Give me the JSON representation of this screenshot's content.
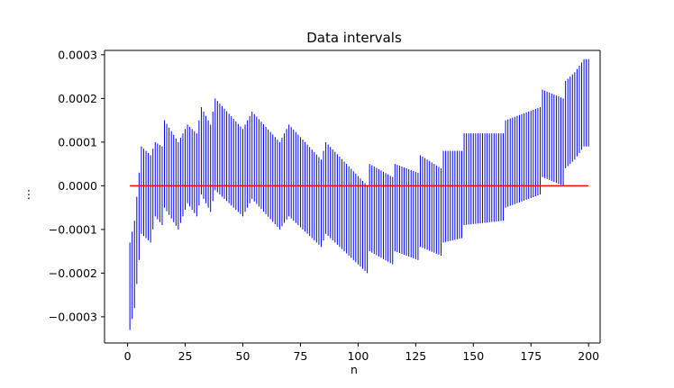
{
  "chart_data": {
    "type": "line",
    "title": "Data intervals",
    "xlabel": "n",
    "ylabel": "⋮",
    "xlim": [
      -10,
      205
    ],
    "ylim": [
      -0.00036,
      0.00031
    ],
    "x_ticks": [
      0,
      25,
      50,
      75,
      100,
      125,
      150,
      175,
      200
    ],
    "x_tick_labels": [
      "0",
      "25",
      "50",
      "75",
      "100",
      "125",
      "150",
      "175",
      "200"
    ],
    "y_ticks": [
      -0.0003,
      -0.0002,
      -0.0001,
      0.0,
      0.0001,
      0.0002,
      0.0003
    ],
    "y_tick_labels": [
      "−0.0003",
      "−0.0002",
      "−0.0001",
      "0.0000",
      "0.0001",
      "0.0002",
      "0.0003"
    ],
    "grid": false,
    "series": [
      {
        "style": "vertical interval segments",
        "color": "#0000ff",
        "n_min": 1,
        "n_max": 200,
        "interval_envelope": [
          {
            "n": 1,
            "low": -0.00033,
            "high": -0.00013
          },
          {
            "n": 3,
            "low": -0.00028,
            "high": -8e-05
          },
          {
            "n": 5,
            "low": -0.00017,
            "high": 3e-05
          },
          {
            "n": 6,
            "low": -0.00011,
            "high": 9e-05
          },
          {
            "n": 10,
            "low": -0.00013,
            "high": 7e-05
          },
          {
            "n": 12,
            "low": -7e-05,
            "high": 0.0001
          },
          {
            "n": 15,
            "low": -9e-05,
            "high": 9e-05
          },
          {
            "n": 16,
            "low": -5e-05,
            "high": 0.00015
          },
          {
            "n": 22,
            "low": -0.0001,
            "high": 0.0001
          },
          {
            "n": 26,
            "low": -4e-05,
            "high": 0.00014
          },
          {
            "n": 30,
            "low": -7e-05,
            "high": 0.00012
          },
          {
            "n": 32,
            "low": -2e-05,
            "high": 0.00018
          },
          {
            "n": 36,
            "low": -6e-05,
            "high": 0.00014
          },
          {
            "n": 38,
            "low": -1e-05,
            "high": 0.0002
          },
          {
            "n": 50,
            "low": -7e-05,
            "high": 0.00013
          },
          {
            "n": 54,
            "low": -3e-05,
            "high": 0.00017
          },
          {
            "n": 66,
            "low": -0.0001,
            "high": 0.0001
          },
          {
            "n": 70,
            "low": -7e-05,
            "high": 0.00014
          },
          {
            "n": 84,
            "low": -0.00014,
            "high": 6e-05
          },
          {
            "n": 86,
            "low": -0.00011,
            "high": 0.0001
          },
          {
            "n": 104,
            "low": -0.0002,
            "high": 0.0
          },
          {
            "n": 105,
            "low": -0.00015,
            "high": 5e-05
          },
          {
            "n": 115,
            "low": -0.00018,
            "high": 2e-05
          },
          {
            "n": 116,
            "low": -0.00015,
            "high": 5e-05
          },
          {
            "n": 126,
            "low": -0.00017,
            "high": 3e-05
          },
          {
            "n": 127,
            "low": -0.00014,
            "high": 7e-05
          },
          {
            "n": 136,
            "low": -0.00016,
            "high": 4e-05
          },
          {
            "n": 137,
            "low": -0.00013,
            "high": 8e-05
          },
          {
            "n": 145,
            "low": -0.00012,
            "high": 8e-05
          },
          {
            "n": 146,
            "low": -9e-05,
            "high": 0.00012
          },
          {
            "n": 163,
            "low": -8e-05,
            "high": 0.00012
          },
          {
            "n": 164,
            "low": -5e-05,
            "high": 0.00015
          },
          {
            "n": 179,
            "low": -2e-05,
            "high": 0.00018
          },
          {
            "n": 180,
            "low": 2e-05,
            "high": 0.00022
          },
          {
            "n": 189,
            "low": 0.0,
            "high": 0.0002
          },
          {
            "n": 190,
            "low": 4e-05,
            "high": 0.00024
          },
          {
            "n": 194,
            "low": 6e-05,
            "high": 0.00026
          },
          {
            "n": 198,
            "low": 9e-05,
            "high": 0.00029
          },
          {
            "n": 200,
            "low": 9e-05,
            "high": 0.00029
          }
        ]
      },
      {
        "style": "reference line",
        "color": "#ff0000",
        "x": [
          1,
          200
        ],
        "values": [
          0.0,
          0.0
        ]
      }
    ]
  }
}
